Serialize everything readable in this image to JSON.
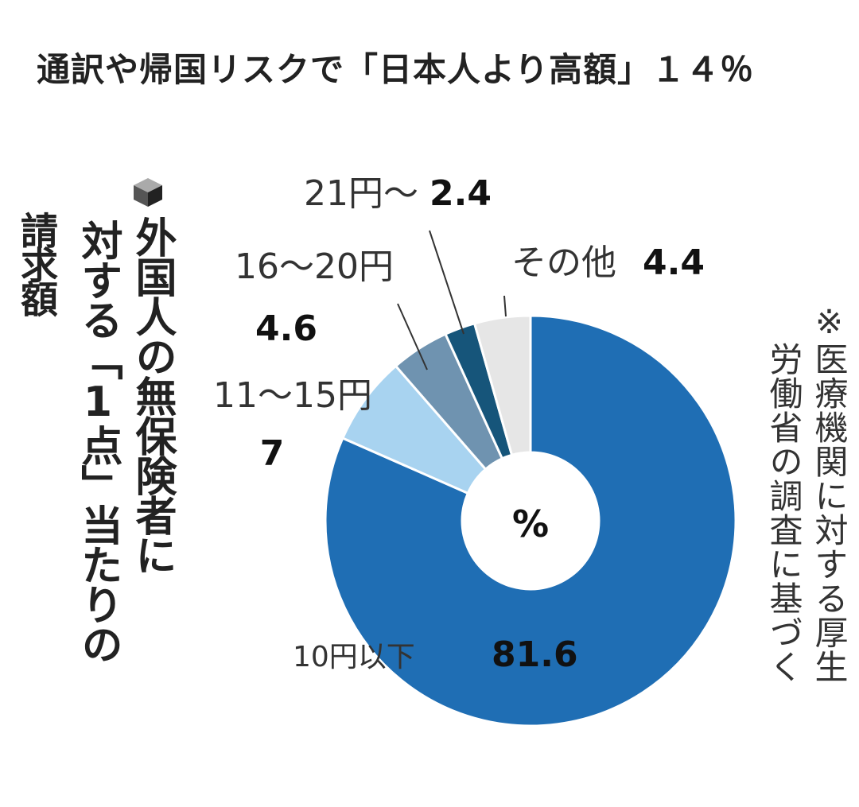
{
  "headline": "通訳や帰国リスクで「日本人より高額」１４％",
  "title_col1": "外国人の無保険者に",
  "title_col2": "対する「1点」当たりの",
  "title_col3": "請求額",
  "note_col1": "※医療機関に対する厚生",
  "note_col2": "労働省の調査に基づく",
  "colors": {
    "10円以下": "#1f6eb4",
    "11〜15円": "#a8d3f0",
    "16〜20円": "#6f93b0",
    "21円〜": "#16557a",
    "その他": "#e6e6e6"
  },
  "chart_data": {
    "type": "pie",
    "donut": true,
    "center_label": "%",
    "unit": "%",
    "slices": [
      {
        "label": "10円以下",
        "value": 81.6,
        "display": "81.6"
      },
      {
        "label": "11～15円",
        "value": 7.0,
        "display": "7"
      },
      {
        "label": "16～20円",
        "value": 4.6,
        "display": "4.6"
      },
      {
        "label": "21円～",
        "value": 2.4,
        "display": "2.4"
      },
      {
        "label": "その他",
        "value": 4.4,
        "display": "4.4"
      }
    ]
  }
}
